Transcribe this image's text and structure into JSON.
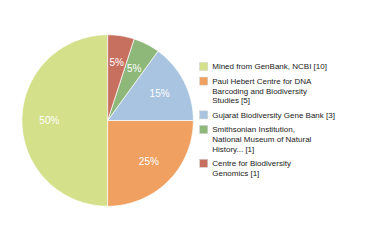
{
  "chart_data": {
    "type": "pie",
    "categories": [
      "Mined from GenBank, NCBI [10]",
      "Paul Hebert Centre for DNA\nBarcoding and Biodiversity\nStudies [5]",
      "Gujarat Biodiversity Gene Bank [3]",
      "Smithsonian Institution,\nNational Museum of Natural\nHistory... [1]",
      "Centre for Biodiversity\nGenomics [1]"
    ],
    "values": [
      50,
      25,
      15,
      5,
      5
    ],
    "value_labels": [
      "50%",
      "25%",
      "15%",
      "5%",
      "5%"
    ],
    "colors": [
      "#d4e08a",
      "#f0a060",
      "#a8c4e0",
      "#8db87a",
      "#c87060"
    ],
    "data_labels": true,
    "legend": "right"
  }
}
